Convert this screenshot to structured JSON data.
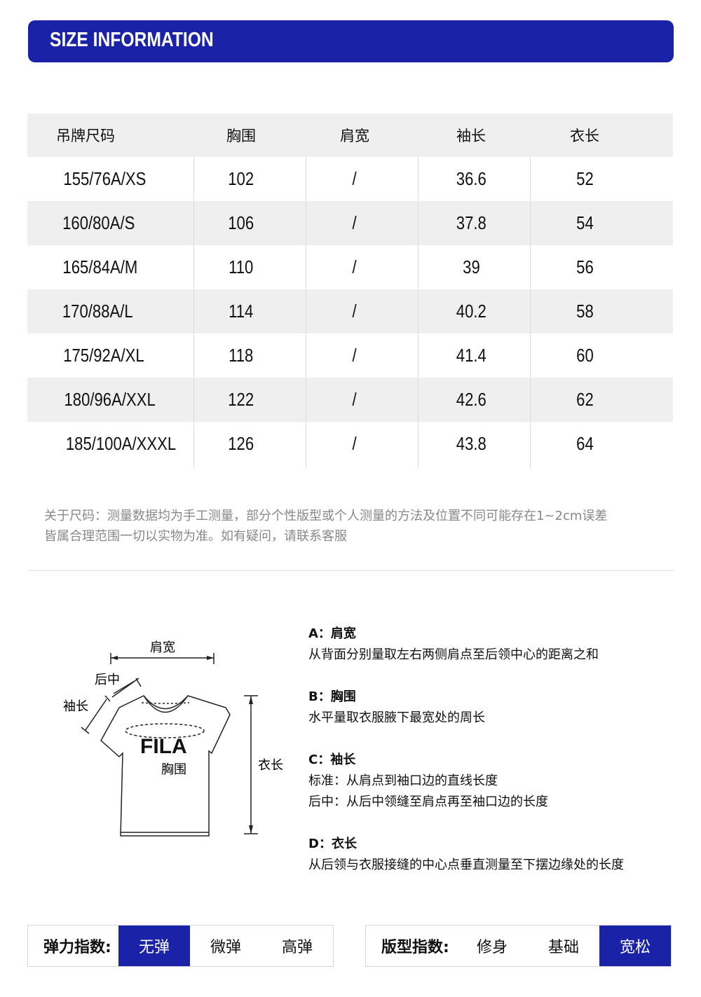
{
  "header": {
    "title": "SIZE INFORMATION",
    "color": "#1a22a8"
  },
  "table": {
    "columns": [
      "吊牌尺码",
      "胸围",
      "肩宽",
      "袖长",
      "衣长"
    ],
    "rows": [
      [
        "155/76A/XS",
        "102",
        "/",
        "36.6",
        "52"
      ],
      [
        "160/80A/S",
        "106",
        "/",
        "37.8",
        "54"
      ],
      [
        "165/84A/M",
        "110",
        "/",
        "39",
        "56"
      ],
      [
        "170/88A/L",
        "114",
        "/",
        "40.2",
        "58"
      ],
      [
        "175/92A/XL",
        "118",
        "/",
        "41.4",
        "60"
      ],
      [
        "180/96A/XXL",
        "122",
        "/",
        "42.6",
        "62"
      ],
      [
        "185/100A/XXXL",
        "126",
        "/",
        "43.8",
        "64"
      ]
    ]
  },
  "note": {
    "line1": "关于尺码：测量数据均为手工测量，部分个性版型或个人测量的方法及位置不同可能存在1~2cm误差",
    "line2": "皆属合理范围一切以实物为准。如有疑问，请联系客服"
  },
  "diagram": {
    "shoulder": "肩宽",
    "back_center": "后中",
    "sleeve": "袖长",
    "chest": "胸围",
    "length": "衣长",
    "logo": "FILA"
  },
  "descriptions": [
    {
      "title": "A：肩宽",
      "lines": [
        "从背面分别量取左右两侧肩点至后领中心的距离之和"
      ]
    },
    {
      "title": "B：胸围",
      "lines": [
        "水平量取衣服腋下最宽处的周长"
      ]
    },
    {
      "title": "C：袖长",
      "lines": [
        "标准：从肩点到袖口边的直线长度",
        "后中：从后中领缝至肩点再至袖口边的长度"
      ]
    },
    {
      "title": "D：衣长",
      "lines": [
        "从后领与衣服接缝的中心点垂直测量至下摆边缘处的长度"
      ]
    }
  ],
  "elasticity": {
    "label": "弹力指数:",
    "options": [
      "无弹",
      "微弹",
      "高弹"
    ],
    "selected": "无弹"
  },
  "fit": {
    "label": "版型指数:",
    "options": [
      "修身",
      "基础",
      "宽松"
    ],
    "selected": "宽松"
  }
}
